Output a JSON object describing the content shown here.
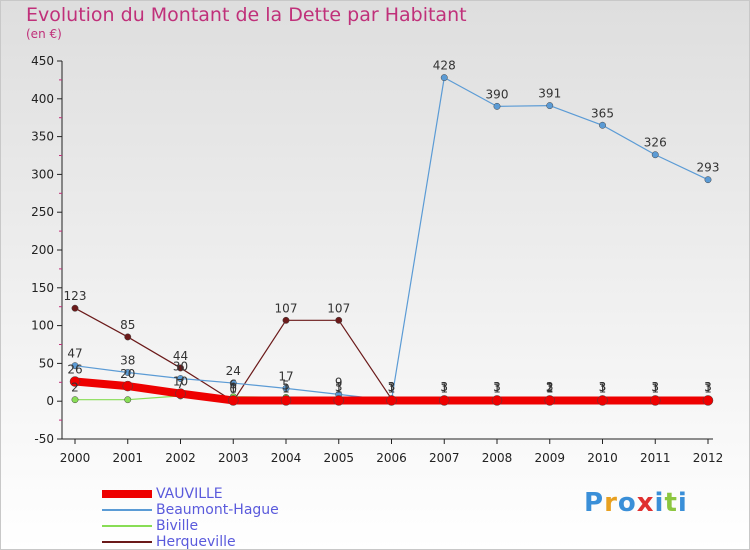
{
  "title": "Evolution du Montant de la Dette par Habitant",
  "unit": "(en €)",
  "logo": "Proxiti",
  "chart_data": {
    "type": "line",
    "title": "Evolution du Montant de la Dette par Habitant",
    "ylabel": "(en €)",
    "xlabel": "",
    "ylim": [
      -50,
      450
    ],
    "yticks": [
      -50,
      0,
      50,
      100,
      150,
      200,
      250,
      300,
      350,
      400,
      450
    ],
    "categories": [
      "2000",
      "2001",
      "2002",
      "2003",
      "2004",
      "2005",
      "2006",
      "2007",
      "2008",
      "2009",
      "2010",
      "2011",
      "2012"
    ],
    "series": [
      {
        "name": "VAUVILLE",
        "color": "#ee0000",
        "width": 8,
        "values": [
          26,
          20,
          10,
          1,
          1,
          1,
          1,
          1,
          1,
          1,
          1,
          1,
          1
        ]
      },
      {
        "name": "Beaumont-Hague",
        "color": "#5b9bd5",
        "width": 1.2,
        "values": [
          47,
          38,
          30,
          24,
          17,
          9,
          1,
          428,
          390,
          391,
          365,
          326,
          293
        ]
      },
      {
        "name": "Biville",
        "color": "#88dd55",
        "width": 1.2,
        "values": [
          2,
          2,
          7,
          6,
          5,
          3,
          3,
          3,
          3,
          2,
          3,
          3,
          3
        ]
      },
      {
        "name": "Herqueville",
        "color": "#6b1a1a",
        "width": 1.2,
        "values": [
          123,
          85,
          44,
          0,
          107,
          107,
          3,
          3,
          3,
          3,
          3,
          3,
          3
        ]
      }
    ],
    "data_labels": [
      {
        "series": "Beaumont-Hague",
        "index": 0,
        "text": "47"
      },
      {
        "series": "Beaumont-Hague",
        "index": 1,
        "text": "38"
      },
      {
        "series": "Beaumont-Hague",
        "index": 2,
        "text": "30"
      },
      {
        "series": "Beaumont-Hague",
        "index": 3,
        "text": "24"
      },
      {
        "series": "Beaumont-Hague",
        "index": 4,
        "text": "17"
      },
      {
        "series": "Beaumont-Hague",
        "index": 5,
        "text": "9"
      },
      {
        "series": "Beaumont-Hague",
        "index": 6,
        "text": "1"
      },
      {
        "series": "Beaumont-Hague",
        "index": 7,
        "text": "428"
      },
      {
        "series": "Beaumont-Hague",
        "index": 8,
        "text": "390"
      },
      {
        "series": "Beaumont-Hague",
        "index": 9,
        "text": "391"
      },
      {
        "series": "Beaumont-Hague",
        "index": 10,
        "text": "365"
      },
      {
        "series": "Beaumont-Hague",
        "index": 11,
        "text": "326"
      },
      {
        "series": "Beaumont-Hague",
        "index": 12,
        "text": "293"
      },
      {
        "series": "Herqueville",
        "index": 0,
        "text": "123"
      },
      {
        "series": "Herqueville",
        "index": 1,
        "text": "85"
      },
      {
        "series": "Herqueville",
        "index": 2,
        "text": "44"
      },
      {
        "series": "Herqueville",
        "index": 3,
        "text": "0"
      },
      {
        "series": "Herqueville",
        "index": 4,
        "text": "107"
      },
      {
        "series": "Herqueville",
        "index": 5,
        "text": "107"
      },
      {
        "series": "Herqueville",
        "index": 6,
        "text": "3"
      },
      {
        "series": "Herqueville",
        "index": 7,
        "text": "3"
      },
      {
        "series": "Herqueville",
        "index": 8,
        "text": "3"
      },
      {
        "series": "Herqueville",
        "index": 9,
        "text": "3"
      },
      {
        "series": "Herqueville",
        "index": 10,
        "text": "3"
      },
      {
        "series": "Herqueville",
        "index": 11,
        "text": "3"
      },
      {
        "series": "Herqueville",
        "index": 12,
        "text": "3"
      },
      {
        "series": "VAUVILLE",
        "index": 0,
        "text": "26"
      },
      {
        "series": "VAUVILLE",
        "index": 1,
        "text": "20"
      },
      {
        "series": "VAUVILLE",
        "index": 2,
        "text": "10"
      },
      {
        "series": "VAUVILLE",
        "index": 3,
        "text": "1"
      },
      {
        "series": "VAUVILLE",
        "index": 4,
        "text": "1"
      },
      {
        "series": "VAUVILLE",
        "index": 5,
        "text": "1"
      },
      {
        "series": "VAUVILLE",
        "index": 6,
        "text": "1"
      },
      {
        "series": "VAUVILLE",
        "index": 7,
        "text": "1"
      },
      {
        "series": "VAUVILLE",
        "index": 8,
        "text": "1"
      },
      {
        "series": "VAUVILLE",
        "index": 9,
        "text": "1"
      },
      {
        "series": "VAUVILLE",
        "index": 10,
        "text": "1"
      },
      {
        "series": "VAUVILLE",
        "index": 11,
        "text": "1"
      },
      {
        "series": "VAUVILLE",
        "index": 12,
        "text": "1"
      },
      {
        "series": "Biville",
        "index": 0,
        "text": "2"
      },
      {
        "series": "Biville",
        "index": 2,
        "text": "7"
      },
      {
        "series": "Biville",
        "index": 3,
        "text": "6"
      },
      {
        "series": "Biville",
        "index": 4,
        "text": "5"
      },
      {
        "series": "Biville",
        "index": 5,
        "text": "3"
      },
      {
        "series": "Biville",
        "index": 6,
        "text": "3"
      },
      {
        "series": "Biville",
        "index": 7,
        "text": "3"
      },
      {
        "series": "Biville",
        "index": 8,
        "text": "3"
      },
      {
        "series": "Biville",
        "index": 9,
        "text": "2"
      },
      {
        "series": "Biville",
        "index": 10,
        "text": "3"
      },
      {
        "series": "Biville",
        "index": 11,
        "text": "3"
      },
      {
        "series": "Biville",
        "index": 12,
        "text": "3"
      }
    ],
    "legend": [
      "VAUVILLE",
      "Beaumont-Hague",
      "Biville",
      "Herqueville"
    ],
    "legend_position": "bottom-left",
    "grid": false
  }
}
